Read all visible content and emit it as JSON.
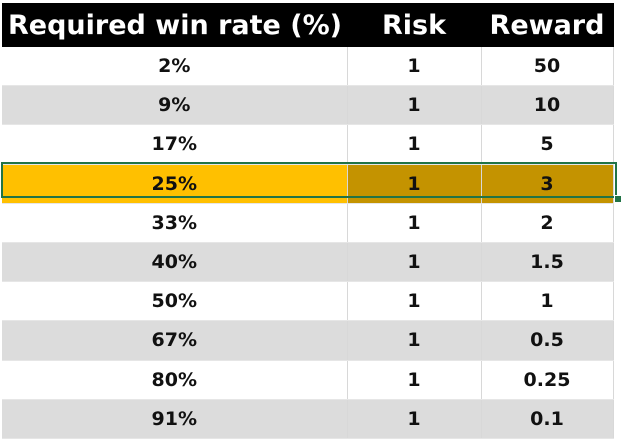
{
  "table": {
    "headers": [
      "Required win rate (%)",
      "Risk",
      "Reward"
    ],
    "rows": [
      [
        "2%",
        "1",
        "50"
      ],
      [
        "9%",
        "1",
        "10"
      ],
      [
        "17%",
        "1",
        "5"
      ],
      [
        "25%",
        "1",
        "3"
      ],
      [
        "33%",
        "1",
        "2"
      ],
      [
        "40%",
        "1",
        "1.5"
      ],
      [
        "50%",
        "1",
        "1"
      ],
      [
        "67%",
        "1",
        "0.5"
      ],
      [
        "80%",
        "1",
        "0.25"
      ],
      [
        "91%",
        "1",
        "0.1"
      ]
    ],
    "selected_row": 3
  },
  "colors": {
    "header_bg": "#000000",
    "header_text": "#ffffff",
    "row_alt": "#dcdcdc",
    "highlight_first": "#ffc000",
    "highlight_rest": "#c49300",
    "selection_border": "#217346"
  }
}
